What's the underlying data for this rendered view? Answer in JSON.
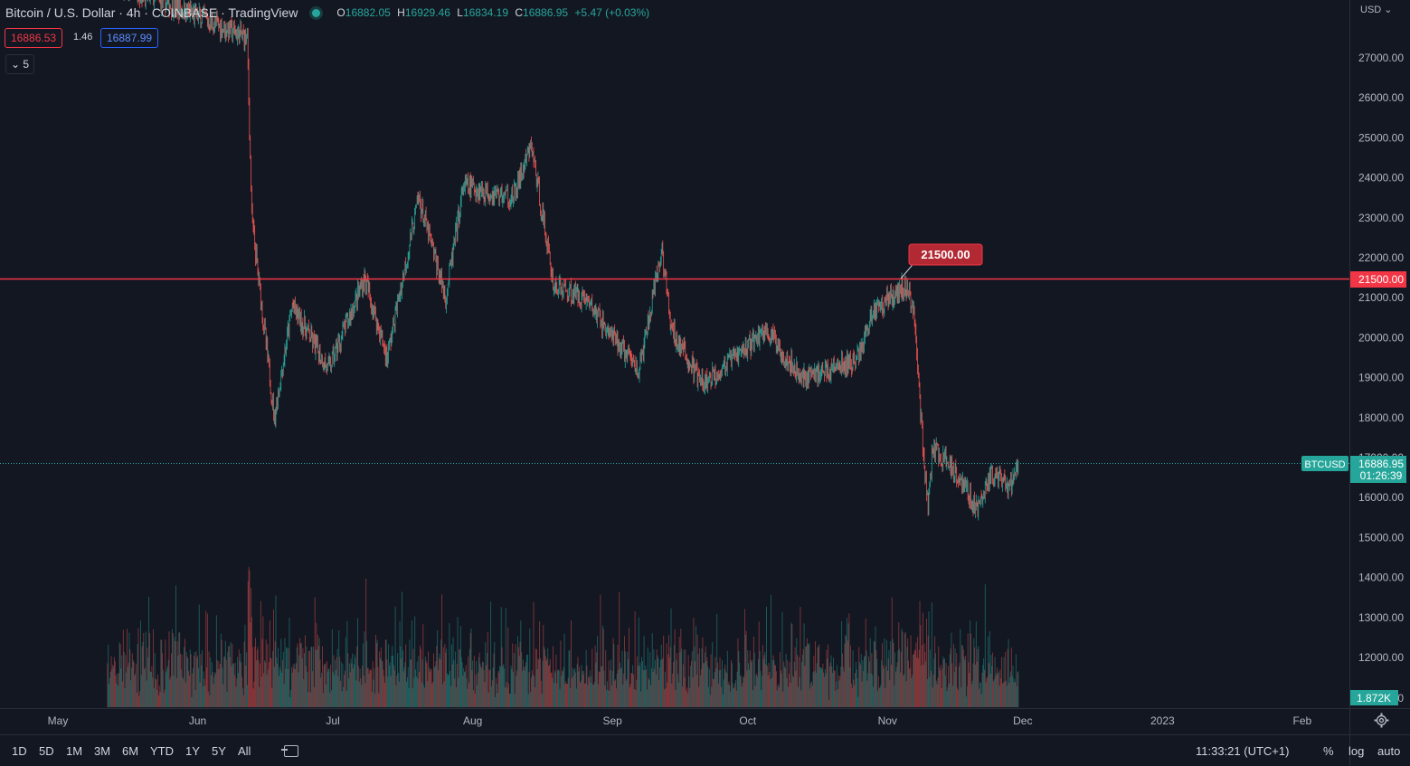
{
  "header": {
    "symbol_title": "Bitcoin / U.S. Dollar · 4h · COINBASE · TradingView",
    "ohlc": {
      "open_label": "O",
      "open": "16882.05",
      "high_label": "H",
      "high": "16929.46",
      "low_label": "L",
      "low": "16834.19",
      "close_label": "C",
      "close": "16886.95",
      "change": "+5.47 (+0.03%)"
    },
    "sell_price": "16886.53",
    "spread": "1.46",
    "buy_price": "16887.99",
    "indicators_collapse": "5"
  },
  "price_axis": {
    "currency": "USD",
    "ticks": [
      "27000.00",
      "26000.00",
      "25000.00",
      "24000.00",
      "23000.00",
      "22000.00",
      "21000.00",
      "20000.00",
      "19000.00",
      "18000.00",
      "17000.00",
      "16000.00",
      "15000.00",
      "14000.00",
      "13000.00",
      "12000.00"
    ],
    "horizontal_line_label": "21500.00",
    "horizontal_line_value": 21500,
    "last_price": "16886.95",
    "last_price_value": 16886.95,
    "countdown": "01:26:39",
    "symbol_tag": "BTCUSD",
    "volume_label": "1.872K",
    "volume_zero": "0"
  },
  "time_axis": {
    "labels": [
      "May",
      "Jun",
      "Jul",
      "Aug",
      "Sep",
      "Oct",
      "Nov",
      "Dec",
      "2023",
      "Feb"
    ]
  },
  "bottom_bar": {
    "ranges": [
      "1D",
      "5D",
      "1M",
      "3M",
      "6M",
      "YTD",
      "1Y",
      "5Y",
      "All"
    ],
    "clock": "11:33:21 (UTC+1)",
    "percent_label": "%",
    "log_label": "log",
    "auto_label": "auto"
  },
  "colors": {
    "background": "#131722",
    "up": "#26a69a",
    "down": "#ef5350",
    "hline": "#f23645",
    "last_price": "#26a69a"
  },
  "chart_data": {
    "type": "candlestick",
    "title": "Bitcoin / U.S. Dollar · 4h · COINBASE · TradingView",
    "timeframe": "4h",
    "y_axis_unit": "USD",
    "ylim": [
      11000,
      28300
    ],
    "x": [
      "May",
      "Jun",
      "Jul",
      "Aug",
      "Sep",
      "Oct",
      "Nov",
      "Dec",
      "2023",
      "Feb"
    ],
    "price_path": [
      {
        "date": "2022-05-12",
        "price": 29000
      },
      {
        "date": "2022-06-12",
        "price": 27500
      },
      {
        "date": "2022-06-13",
        "price": 23000
      },
      {
        "date": "2022-06-15",
        "price": 21000
      },
      {
        "date": "2022-06-18",
        "price": 18000
      },
      {
        "date": "2022-06-22",
        "price": 20800
      },
      {
        "date": "2022-06-30",
        "price": 19200
      },
      {
        "date": "2022-07-08",
        "price": 21500
      },
      {
        "date": "2022-07-13",
        "price": 19500
      },
      {
        "date": "2022-07-20",
        "price": 23500
      },
      {
        "date": "2022-07-26",
        "price": 21000
      },
      {
        "date": "2022-07-30",
        "price": 23800
      },
      {
        "date": "2022-08-10",
        "price": 23500
      },
      {
        "date": "2022-08-14",
        "price": 24800
      },
      {
        "date": "2022-08-19",
        "price": 21300
      },
      {
        "date": "2022-08-26",
        "price": 21000
      },
      {
        "date": "2022-09-01",
        "price": 20000
      },
      {
        "date": "2022-09-07",
        "price": 19200
      },
      {
        "date": "2022-09-12",
        "price": 22200
      },
      {
        "date": "2022-09-14",
        "price": 20200
      },
      {
        "date": "2022-09-21",
        "price": 18800
      },
      {
        "date": "2022-10-05",
        "price": 20200
      },
      {
        "date": "2022-10-13",
        "price": 19000
      },
      {
        "date": "2022-10-25",
        "price": 19400
      },
      {
        "date": "2022-10-29",
        "price": 20700
      },
      {
        "date": "2022-11-05",
        "price": 21300
      },
      {
        "date": "2022-11-07",
        "price": 20600
      },
      {
        "date": "2022-11-09",
        "price": 17000
      },
      {
        "date": "2022-11-10",
        "price": 15800
      },
      {
        "date": "2022-11-11",
        "price": 17200
      },
      {
        "date": "2022-11-16",
        "price": 16700
      },
      {
        "date": "2022-11-21",
        "price": 15700
      },
      {
        "date": "2022-11-24",
        "price": 16600
      },
      {
        "date": "2022-11-28",
        "price": 16200
      },
      {
        "date": "2022-11-30",
        "price": 16887
      }
    ],
    "horizontal_levels": [
      21500
    ],
    "last_price": 16886.95,
    "volume_scale_label": "1.872K",
    "legend": "none",
    "grid": false
  }
}
